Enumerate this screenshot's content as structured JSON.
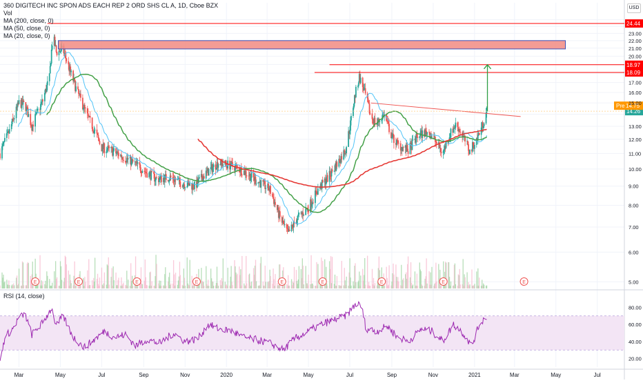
{
  "header": {
    "title": "360 DIGITECH INC SPON ADS EACH REP 2 ORD SHS CL A, 1D, Cboe BZX",
    "indicators": [
      "Vol",
      "MA (200, close, 0)",
      "MA (50, close, 0)",
      "MA (20, close, 0)"
    ],
    "currency": "USD"
  },
  "rsi_panel": {
    "label": "RSI (14, close)",
    "ticks": [
      "80.00",
      "60.00",
      "40.00",
      "20.00"
    ]
  },
  "colors": {
    "up": "#26a69a",
    "down": "#ef5350",
    "ma200": "#e53935",
    "ma50": "#43a047",
    "ma20": "#4fc3f7",
    "rsi_line": "#9c27b0",
    "rsi_band": "#f3e5f5",
    "price_tag": "#26a69a",
    "pre_tag": "#ff9800",
    "level_tag": "#ff0000"
  },
  "chart_data": {
    "type": "candlestick",
    "title": "360 DIGITECH INC SPON ADS EACH REP 2 ORD SHS CL A, 1D, Cboe BZX",
    "y_scale": "log",
    "ylim": [
      4.8,
      25.5
    ],
    "y_ticks": [
      "25.00",
      "24.00",
      "23.00",
      "22.00",
      "21.00",
      "20.00",
      "19.00",
      "18.00",
      "17.00",
      "16.00",
      "15.00",
      "14.00",
      "13.00",
      "12.00",
      "11.00",
      "10.00",
      "9.00",
      "8.00",
      "7.00",
      "6.00",
      "5.00"
    ],
    "x_ticks": [
      "Mar",
      "May",
      "Jul",
      "Sep",
      "Nov",
      "2020",
      "Mar",
      "May",
      "Jul",
      "Sep",
      "Nov",
      "2021",
      "Mar",
      "May",
      "Jul"
    ],
    "x_range": [
      "2019-02-01",
      "2021-08-10"
    ],
    "last_price": "14.26",
    "pre_label": "Pre",
    "pre_price": "14.75",
    "levels": [
      {
        "label": "24.44",
        "value": 24.44
      },
      {
        "label": "18.97",
        "value": 18.97
      },
      {
        "label": "18.09",
        "value": 18.09
      }
    ],
    "resistance_zone": {
      "from": "2019-04-28",
      "to": "2021-05-15",
      "low": 20.9,
      "high": 22.0
    },
    "trendline": {
      "from": [
        "2020-08-01",
        15.0
      ],
      "to": [
        "2021-03-10",
        13.8
      ]
    },
    "target_arrow": {
      "date": "2021-01-20",
      "from": 14.26,
      "to": 18.97
    },
    "earnings_markers": [
      "2019-03-25",
      "2019-05-28",
      "2019-08-22",
      "2019-11-18",
      "2020-03-23",
      "2020-05-22",
      "2020-08-17",
      "2020-11-16",
      "2021-03-15"
    ],
    "earnings_label": "E",
    "ohlc_anchors": [
      [
        "2019-02-01",
        11.0
      ],
      [
        "2019-02-15",
        12.6
      ],
      [
        "2019-03-01",
        15.0
      ],
      [
        "2019-03-10",
        14.8
      ],
      [
        "2019-03-20",
        13.0
      ],
      [
        "2019-04-05",
        15.2
      ],
      [
        "2019-04-15",
        17.5
      ],
      [
        "2019-04-20",
        22.8
      ],
      [
        "2019-04-25",
        20.5
      ],
      [
        "2019-05-05",
        20.8
      ],
      [
        "2019-05-15",
        18.3
      ],
      [
        "2019-05-25",
        16.2
      ],
      [
        "2019-06-10",
        13.8
      ],
      [
        "2019-06-20",
        12.7
      ],
      [
        "2019-07-01",
        11.4
      ],
      [
        "2019-07-15",
        11.2
      ],
      [
        "2019-08-01",
        10.8
      ],
      [
        "2019-08-20",
        10.3
      ],
      [
        "2019-09-05",
        9.8
      ],
      [
        "2019-09-20",
        9.4
      ],
      [
        "2019-10-10",
        9.5
      ],
      [
        "2019-10-25",
        9.2
      ],
      [
        "2019-11-15",
        9.0
      ],
      [
        "2019-12-01",
        9.7
      ],
      [
        "2019-12-20",
        10.4
      ],
      [
        "2020-01-10",
        10.2
      ],
      [
        "2020-01-25",
        9.9
      ],
      [
        "2020-02-15",
        9.3
      ],
      [
        "2020-03-05",
        8.8
      ],
      [
        "2020-03-20",
        7.4
      ],
      [
        "2020-04-01",
        6.7
      ],
      [
        "2020-04-15",
        7.4
      ],
      [
        "2020-05-01",
        7.9
      ],
      [
        "2020-05-15",
        8.8
      ],
      [
        "2020-06-01",
        9.6
      ],
      [
        "2020-06-15",
        10.5
      ],
      [
        "2020-06-25",
        11.3
      ],
      [
        "2020-07-02",
        13.2
      ],
      [
        "2020-07-08",
        15.5
      ],
      [
        "2020-07-15",
        17.6
      ],
      [
        "2020-07-22",
        16.2
      ],
      [
        "2020-08-01",
        13.8
      ],
      [
        "2020-08-10",
        13.2
      ],
      [
        "2020-08-20",
        14.0
      ],
      [
        "2020-09-01",
        12.2
      ],
      [
        "2020-09-10",
        11.6
      ],
      [
        "2020-09-25",
        11.2
      ],
      [
        "2020-10-10",
        12.3
      ],
      [
        "2020-10-25",
        12.6
      ],
      [
        "2020-11-05",
        11.8
      ],
      [
        "2020-11-15",
        11.0
      ],
      [
        "2020-11-25",
        12.3
      ],
      [
        "2020-12-05",
        13.2
      ],
      [
        "2020-12-15",
        12.2
      ],
      [
        "2020-12-25",
        11.1
      ],
      [
        "2021-01-05",
        12.1
      ],
      [
        "2021-01-12",
        13.0
      ],
      [
        "2021-01-19",
        14.26
      ]
    ],
    "volume_note": "daily volume histogram at bottom of price pane",
    "rsi": {
      "name": "RSI (14, close)",
      "ylim": [
        10,
        90
      ],
      "band": [
        30,
        70
      ],
      "values": [
        [
          "2019-02-01",
          15
        ],
        [
          "2019-02-08",
          45
        ],
        [
          "2019-02-20",
          55
        ],
        [
          "2019-03-01",
          68
        ],
        [
          "2019-03-10",
          72
        ],
        [
          "2019-03-20",
          48
        ],
        [
          "2019-04-05",
          62
        ],
        [
          "2019-04-18",
          79
        ],
        [
          "2019-04-25",
          58
        ],
        [
          "2019-05-05",
          70
        ],
        [
          "2019-05-20",
          45
        ],
        [
          "2019-06-05",
          33
        ],
        [
          "2019-06-20",
          42
        ],
        [
          "2019-07-05",
          52
        ],
        [
          "2019-07-20",
          45
        ],
        [
          "2019-08-05",
          48
        ],
        [
          "2019-08-20",
          35
        ],
        [
          "2019-09-05",
          42
        ],
        [
          "2019-09-25",
          38
        ],
        [
          "2019-10-15",
          50
        ],
        [
          "2019-11-01",
          40
        ],
        [
          "2019-11-20",
          43
        ],
        [
          "2019-12-05",
          60
        ],
        [
          "2019-12-20",
          55
        ],
        [
          "2020-01-10",
          52
        ],
        [
          "2020-01-25",
          45
        ],
        [
          "2020-02-15",
          42
        ],
        [
          "2020-03-05",
          38
        ],
        [
          "2020-03-25",
          30
        ],
        [
          "2020-04-10",
          43
        ],
        [
          "2020-05-01",
          52
        ],
        [
          "2020-05-20",
          60
        ],
        [
          "2020-06-10",
          66
        ],
        [
          "2020-06-25",
          70
        ],
        [
          "2020-07-10",
          84
        ],
        [
          "2020-07-18",
          82
        ],
        [
          "2020-07-25",
          55
        ],
        [
          "2020-08-10",
          52
        ],
        [
          "2020-08-25",
          58
        ],
        [
          "2020-09-10",
          45
        ],
        [
          "2020-09-25",
          40
        ],
        [
          "2020-10-15",
          55
        ],
        [
          "2020-10-30",
          52
        ],
        [
          "2020-11-15",
          40
        ],
        [
          "2020-12-01",
          60
        ],
        [
          "2020-12-15",
          50
        ],
        [
          "2020-12-28",
          35
        ],
        [
          "2021-01-08",
          60
        ],
        [
          "2021-01-19",
          70
        ]
      ]
    }
  }
}
